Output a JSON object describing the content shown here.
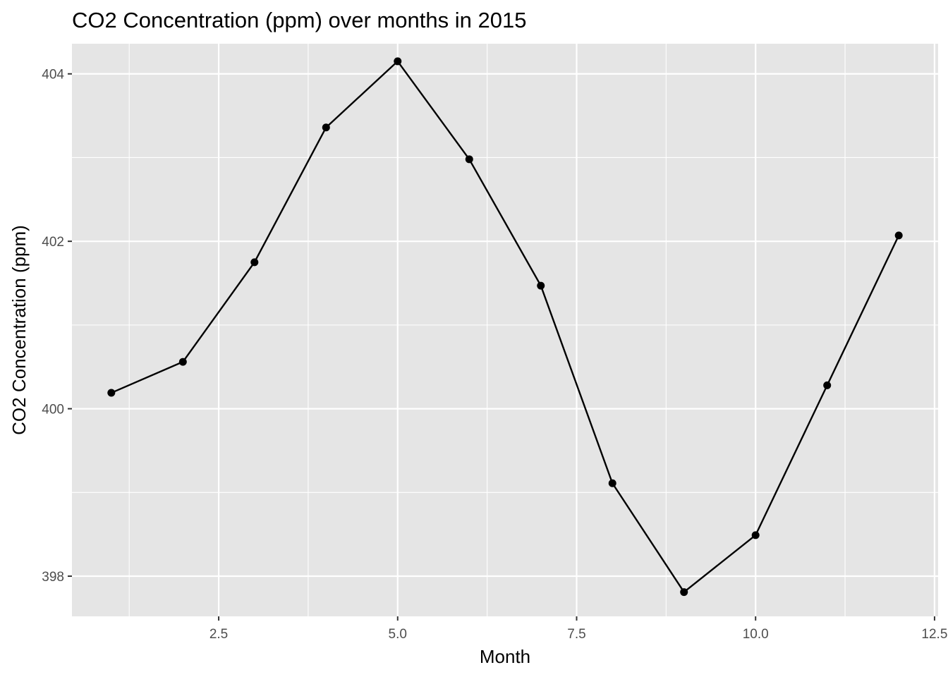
{
  "chart_data": {
    "type": "line",
    "title": "CO2 Concentration (ppm) over months in 2015",
    "xlabel": "Month",
    "ylabel": "CO2 Concentration (ppm)",
    "xlim": [
      0.45,
      12.55
    ],
    "ylim": [
      397.52,
      404.36
    ],
    "x_ticks": [
      2.5,
      5.0,
      7.5,
      10.0,
      12.5
    ],
    "x_tick_labels": [
      "2.5",
      "5.0",
      "7.5",
      "10.0",
      "12.5"
    ],
    "y_ticks": [
      398,
      400,
      402,
      404
    ],
    "y_tick_labels": [
      "398",
      "400",
      "402",
      "404"
    ],
    "grid": true,
    "series": [
      {
        "x": [
          1,
          2,
          3,
          4,
          5,
          6,
          7,
          8,
          9,
          10,
          11,
          12
        ],
        "values": [
          400.19,
          400.56,
          401.75,
          403.36,
          404.15,
          402.98,
          401.47,
          399.11,
          397.81,
          398.49,
          400.28,
          402.07
        ]
      }
    ],
    "colors": {
      "panel": "#e5e5e5",
      "grid": "#ffffff",
      "line": "#000000",
      "point": "#000000",
      "tick_text": "#4d4d4d"
    }
  }
}
